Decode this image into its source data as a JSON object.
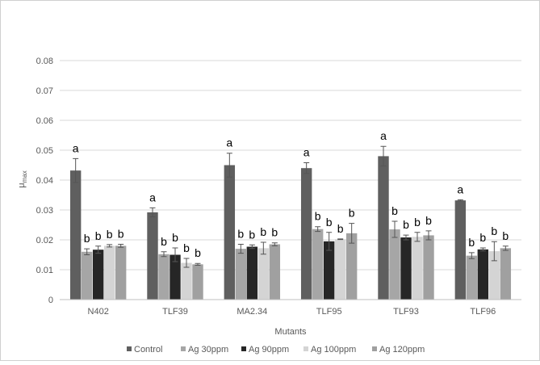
{
  "chart_data": {
    "type": "bar",
    "title": "",
    "xlabel": "Mutants",
    "ylabel": "μ",
    "ylabel_sub": "max",
    "ylim": [
      0,
      0.08
    ],
    "yticks": [
      "0",
      "0.01",
      "0.02",
      "0.03",
      "0.04",
      "0.05",
      "0.06",
      "0.07",
      "0.08"
    ],
    "grid": true,
    "legend": "bottom",
    "categories": [
      "N402",
      "TLF39",
      "MA2.34",
      "TLF95",
      "TLF93",
      "TLF96"
    ],
    "series": [
      {
        "name": "Control",
        "color": "#5f5f5f",
        "values": [
          0.0432,
          0.0292,
          0.045,
          0.044,
          0.048,
          0.0332
        ],
        "errors": [
          0.004,
          0.0015,
          0.004,
          0.0018,
          0.0033,
          0.0002
        ],
        "labels": [
          "a",
          "a",
          "a",
          "a",
          "a",
          "a"
        ]
      },
      {
        "name": "Ag 30ppm",
        "color": "#a6a6a6",
        "values": [
          0.016,
          0.0152,
          0.017,
          0.0236,
          0.0235,
          0.0147
        ],
        "errors": [
          0.001,
          0.0008,
          0.0015,
          0.0008,
          0.0027,
          0.001
        ],
        "labels": [
          "b",
          "b",
          "b",
          "b",
          "b",
          "b"
        ]
      },
      {
        "name": "Ag 90ppm",
        "color": "#262626",
        "values": [
          0.0167,
          0.015,
          0.0177,
          0.0195,
          0.0208,
          0.0168
        ],
        "errors": [
          0.0012,
          0.0023,
          0.0006,
          0.003,
          0.0008,
          0.0005
        ],
        "labels": [
          "b",
          "b",
          "b",
          "b",
          "b",
          "b"
        ]
      },
      {
        "name": "Ag 100ppm",
        "color": "#d4d4d4",
        "values": [
          0.018,
          0.0123,
          0.0172,
          0.0202,
          0.021,
          0.0162
        ],
        "errors": [
          0.0004,
          0.0015,
          0.002,
          0.0001,
          0.0015,
          0.0032
        ],
        "labels": [
          "b",
          "b",
          "b",
          "b",
          "b",
          "b"
        ]
      },
      {
        "name": "Ag 120ppm",
        "color": "#a0a0a0",
        "values": [
          0.018,
          0.0118,
          0.0185,
          0.0222,
          0.0215,
          0.0172
        ],
        "errors": [
          0.0005,
          0.0003,
          0.0005,
          0.0033,
          0.0015,
          0.0007
        ],
        "labels": [
          "b",
          "b",
          "b",
          "b",
          "b",
          "b"
        ]
      }
    ]
  }
}
